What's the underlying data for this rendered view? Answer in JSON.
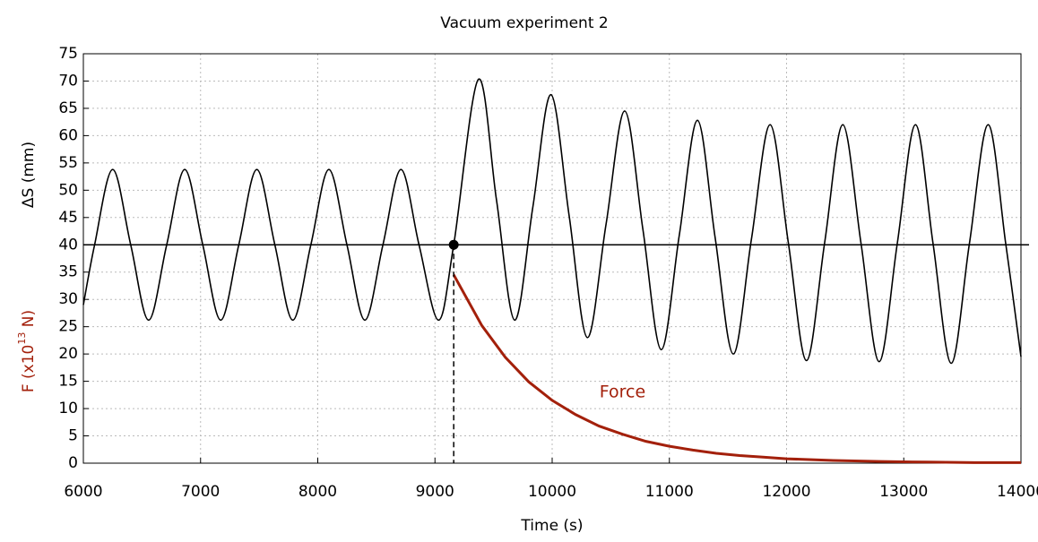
{
  "chart_data": {
    "type": "line",
    "title": "Vacuum experiment 2",
    "xlabel": "Time (s)",
    "ylabel": "ΔS (mm)",
    "force_axis_label": {
      "text": "F (x10",
      "superscript": "13",
      "suffix": " N)",
      "color": "#a3200b"
    },
    "xlim": [
      6000,
      14000
    ],
    "xticks": [
      6000,
      7000,
      8000,
      9000,
      10000,
      11000,
      12000,
      13000,
      14000
    ],
    "ylim": [
      0,
      75
    ],
    "yticks": [
      0,
      5,
      10,
      15,
      20,
      25,
      30,
      35,
      40,
      45,
      50,
      55,
      60,
      65,
      70,
      75
    ],
    "grid": true,
    "hline": 40,
    "marker": {
      "x": 9160,
      "y": 40
    },
    "annotation": {
      "text": "Force",
      "x": 10600,
      "y": 13,
      "color": "#a3200b"
    },
    "series": [
      {
        "name": "ΔS",
        "color": "#000000",
        "smooth": true,
        "x": [
          6000,
          6096,
          6250,
          6404,
          6557,
          6711,
          6865,
          7019,
          7172,
          7326,
          7480,
          7634,
          7787,
          7941,
          8095,
          8249,
          8402,
          8556,
          8710,
          8864,
          9030,
          9160,
          9370,
          9525,
          9680,
          9835,
          9990,
          10145,
          10300,
          10460,
          10620,
          10775,
          10930,
          11085,
          11240,
          11390,
          11545,
          11700,
          11860,
          12015,
          12170,
          12325,
          12480,
          12635,
          12790,
          12945,
          13100,
          13250,
          13405,
          13560,
          13720,
          13870,
          14000
        ],
        "values": [
          29,
          40,
          53.8,
          40,
          26.2,
          40,
          53.8,
          40,
          26.2,
          40,
          53.8,
          40,
          26.2,
          40,
          53.8,
          40,
          26.2,
          40,
          53.8,
          40,
          26.2,
          40,
          70.3,
          48.2,
          26.2,
          46.9,
          67.5,
          45.3,
          23,
          43.8,
          64.5,
          42.7,
          20.8,
          41.8,
          62.8,
          41.4,
          20,
          41,
          62,
          40.4,
          18.8,
          40.4,
          62,
          40.3,
          18.6,
          40.3,
          62,
          40.2,
          18.3,
          40.2,
          62,
          40.2,
          19.5
        ]
      },
      {
        "name": "Force",
        "color": "#a3200b",
        "smooth": false,
        "x": [
          9160,
          9400,
          9600,
          9800,
          10000,
          10200,
          10400,
          10600,
          10800,
          11000,
          11200,
          11400,
          11600,
          11800,
          12000,
          12400,
          12800,
          13200,
          13600,
          14000
        ],
        "values": [
          34.5,
          25.2,
          19.4,
          14.9,
          11.5,
          8.9,
          6.8,
          5.3,
          4.0,
          3.1,
          2.4,
          1.8,
          1.4,
          1.1,
          0.8,
          0.5,
          0.3,
          0.2,
          0.1,
          0.1
        ]
      }
    ]
  }
}
